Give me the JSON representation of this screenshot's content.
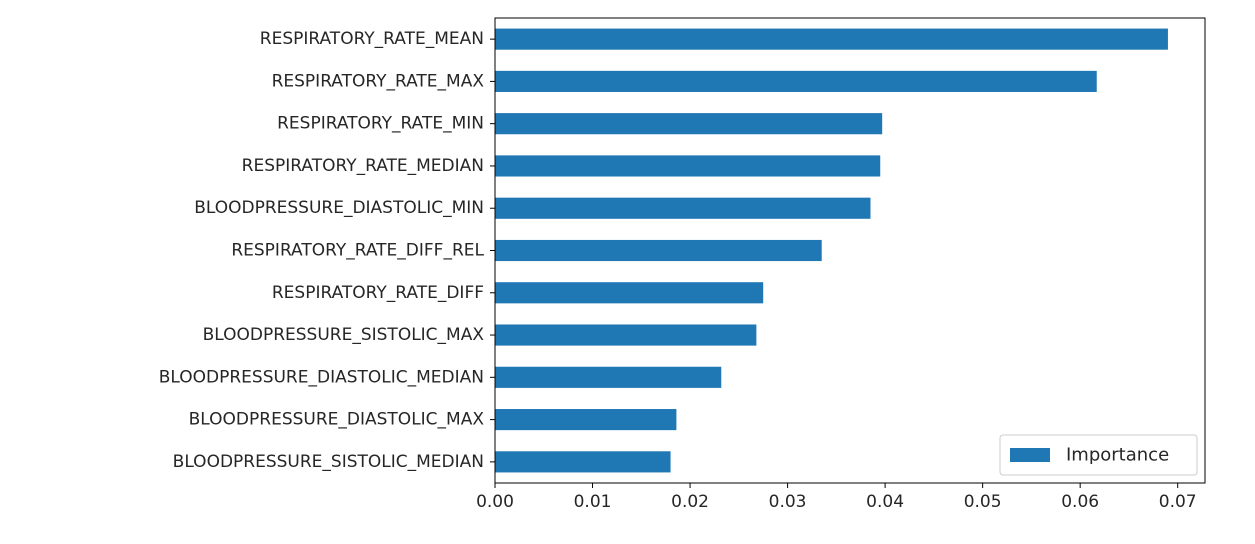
{
  "chart_data": {
    "type": "bar",
    "orientation": "horizontal",
    "categories": [
      "RESPIRATORY_RATE_MEAN",
      "RESPIRATORY_RATE_MAX",
      "RESPIRATORY_RATE_MIN",
      "RESPIRATORY_RATE_MEDIAN",
      "BLOODPRESSURE_DIASTOLIC_MIN",
      "RESPIRATORY_RATE_DIFF_REL",
      "RESPIRATORY_RATE_DIFF",
      "BLOODPRESSURE_SISTOLIC_MAX",
      "BLOODPRESSURE_DIASTOLIC_MEDIAN",
      "BLOODPRESSURE_DIASTOLIC_MAX",
      "BLOODPRESSURE_SISTOLIC_MEDIAN"
    ],
    "series": [
      {
        "name": "Importance",
        "values": [
          0.069,
          0.0617,
          0.0397,
          0.0395,
          0.0385,
          0.0335,
          0.0275,
          0.0268,
          0.0232,
          0.0186,
          0.018
        ],
        "color": "#1f77b4"
      }
    ],
    "xlim": [
      0,
      0.0728
    ],
    "xticks": [
      "0.00",
      "0.01",
      "0.02",
      "0.03",
      "0.04",
      "0.05",
      "0.06",
      "0.07"
    ],
    "title": "",
    "xlabel": "",
    "ylabel": "",
    "legend": {
      "position": "lower-right",
      "entries": [
        "Importance"
      ]
    },
    "grid": false
  }
}
